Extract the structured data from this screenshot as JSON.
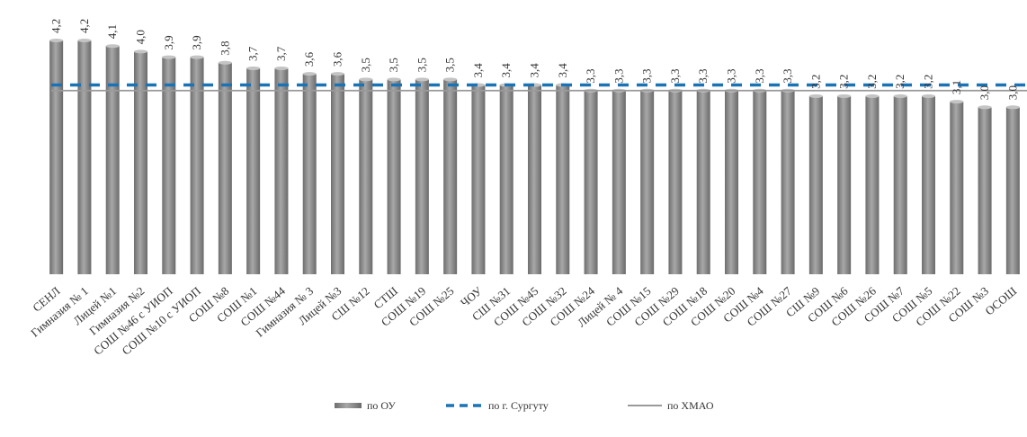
{
  "chart_data": {
    "type": "bar",
    "categories": [
      "СЕНЛ",
      "Гимназия № 1",
      "Лицей №1",
      "Гимназия №2",
      "СОШ №46 с УИОП",
      "СОШ №10 с УИОП",
      "СОШ №8",
      "СОШ №1",
      "СОШ №44",
      "Гимназия № 3",
      "Лицей №3",
      "СШ №12",
      "СТШ",
      "СОШ №19",
      "СОШ №25",
      "ЧОУ",
      "СШ №31",
      "СОШ №45",
      "СОШ №32",
      "СОШ №24",
      "Лицей № 4",
      "СОШ №15",
      "СОШ №29",
      "СОШ №18",
      "СОШ №20",
      "СОШ №4",
      "СОШ №27",
      "СШ №9",
      "СОШ №6",
      "СОШ №26",
      "СОШ №7",
      "СОШ №5",
      "СОШ №22",
      "СОШ №3",
      "ОСОШ"
    ],
    "value_labels": [
      "4,2",
      "4,2",
      "4,1",
      "4,0",
      "3,9",
      "3,9",
      "3,8",
      "3,7",
      "3,7",
      "3,6",
      "3,6",
      "3,5",
      "3,5",
      "3,5",
      "3,5",
      "3,4",
      "3,4",
      "3,4",
      "3,4",
      "3,3",
      "3,3",
      "3,3",
      "3,3",
      "3,3",
      "3,3",
      "3,3",
      "3,3",
      "3,2",
      "3,2",
      "3,2",
      "3,2",
      "3,2",
      "3,1",
      "3,0",
      "3,0"
    ],
    "values": [
      4.2,
      4.2,
      4.1,
      4.0,
      3.9,
      3.9,
      3.8,
      3.7,
      3.7,
      3.6,
      3.6,
      3.5,
      3.5,
      3.5,
      3.5,
      3.4,
      3.4,
      3.4,
      3.4,
      3.3,
      3.3,
      3.3,
      3.3,
      3.3,
      3.3,
      3.3,
      3.3,
      3.2,
      3.2,
      3.2,
      3.2,
      3.2,
      3.1,
      3.0,
      3.0
    ],
    "reference_lines": [
      {
        "name": "по г. Сургуту",
        "value": 3.4,
        "style": "dashed",
        "color": "#1a73b5"
      },
      {
        "name": "по ХМАО",
        "value": 3.3,
        "style": "solid",
        "color": "#9a9a9a"
      }
    ],
    "series": [
      {
        "name": "по ОУ",
        "values": [
          4.2,
          4.2,
          4.1,
          4.0,
          3.9,
          3.9,
          3.8,
          3.7,
          3.7,
          3.6,
          3.6,
          3.5,
          3.5,
          3.5,
          3.5,
          3.4,
          3.4,
          3.4,
          3.4,
          3.3,
          3.3,
          3.3,
          3.3,
          3.3,
          3.3,
          3.3,
          3.3,
          3.2,
          3.2,
          3.2,
          3.2,
          3.2,
          3.1,
          3.0,
          3.0
        ]
      }
    ],
    "ylim": [
      0,
      4.2
    ],
    "grid": false,
    "legend_position": "bottom",
    "bar_color": "#8c8c8c"
  }
}
